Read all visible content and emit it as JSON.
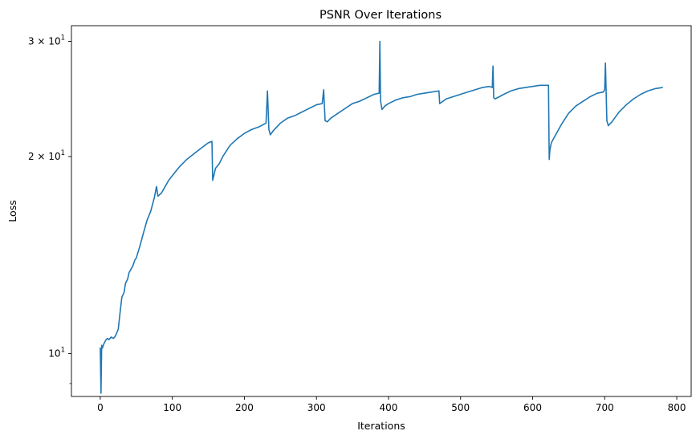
{
  "chart_data": {
    "type": "line",
    "title": "PSNR Over Iterations",
    "xlabel": "Iterations",
    "ylabel": "Loss",
    "xlim": [
      -40,
      820
    ],
    "ylim": [
      8.6,
      31.7
    ],
    "yscale": "log",
    "grid": false,
    "x_ticks": [
      0,
      100,
      200,
      300,
      400,
      500,
      600,
      700,
      800
    ],
    "x_tick_labels": [
      "0",
      "100",
      "200",
      "300",
      "400",
      "500",
      "600",
      "700",
      "800"
    ],
    "y_ticks": [
      10,
      20,
      30
    ],
    "y_tick_labels": [
      {
        "base": "10",
        "exp": "1",
        "prefix": ""
      },
      {
        "base": "10",
        "exp": "1",
        "prefix": "2 × "
      },
      {
        "base": "10",
        "exp": "1",
        "prefix": "3 × "
      }
    ],
    "y_minor_ticks": [
      9
    ],
    "line_color": "#1f77b4",
    "series": [
      {
        "x": [
          0,
          1,
          2,
          3,
          5,
          8,
          10,
          12,
          15,
          18,
          20,
          22,
          25,
          28,
          30,
          33,
          35,
          38,
          40,
          45,
          48,
          50,
          55,
          60,
          65,
          70,
          75,
          78,
          80,
          85,
          90,
          95,
          100,
          105,
          110,
          120,
          130,
          140,
          150,
          155,
          156,
          160,
          165,
          170,
          180,
          190,
          200,
          210,
          220,
          230,
          232,
          234,
          236,
          240,
          250,
          260,
          270,
          280,
          290,
          300,
          308,
          310,
          312,
          315,
          320,
          330,
          340,
          350,
          360,
          370,
          380,
          387,
          388,
          389,
          391,
          395,
          400,
          410,
          420,
          430,
          440,
          450,
          460,
          470,
          471,
          480,
          490,
          500,
          510,
          520,
          530,
          540,
          544,
          545,
          546,
          548,
          560,
          570,
          580,
          590,
          600,
          610,
          620,
          622,
          623,
          624,
          626,
          630,
          640,
          650,
          660,
          670,
          680,
          690,
          698,
          700,
          701,
          703,
          705,
          710,
          720,
          730,
          740,
          750,
          760,
          770,
          780
        ],
        "values": [
          10.2,
          8.7,
          10.3,
          10.2,
          10.35,
          10.5,
          10.55,
          10.5,
          10.6,
          10.55,
          10.6,
          10.7,
          10.9,
          11.7,
          12.2,
          12.4,
          12.8,
          13.0,
          13.3,
          13.6,
          13.9,
          14.0,
          14.6,
          15.3,
          16.0,
          16.5,
          17.3,
          18.0,
          17.4,
          17.6,
          18.0,
          18.4,
          18.7,
          19.0,
          19.3,
          19.8,
          20.2,
          20.6,
          21.0,
          21.1,
          18.4,
          19.2,
          19.5,
          20.0,
          20.8,
          21.3,
          21.7,
          22.0,
          22.2,
          22.5,
          25.2,
          22.0,
          21.6,
          21.9,
          22.5,
          22.9,
          23.1,
          23.4,
          23.7,
          24.0,
          24.1,
          25.3,
          22.7,
          22.6,
          22.9,
          23.3,
          23.7,
          24.1,
          24.3,
          24.6,
          24.9,
          25.0,
          30.0,
          24.3,
          23.6,
          23.9,
          24.1,
          24.4,
          24.6,
          24.7,
          24.9,
          25.0,
          25.1,
          25.2,
          24.1,
          24.5,
          24.7,
          24.9,
          25.1,
          25.3,
          25.5,
          25.6,
          25.5,
          27.5,
          24.6,
          24.5,
          24.9,
          25.2,
          25.4,
          25.5,
          25.6,
          25.7,
          25.7,
          25.7,
          19.8,
          20.5,
          21.0,
          21.4,
          22.4,
          23.3,
          23.9,
          24.3,
          24.7,
          25.0,
          25.1,
          25.3,
          27.8,
          22.7,
          22.3,
          22.6,
          23.4,
          24.0,
          24.5,
          24.9,
          25.2,
          25.4,
          25.5
        ]
      }
    ]
  }
}
